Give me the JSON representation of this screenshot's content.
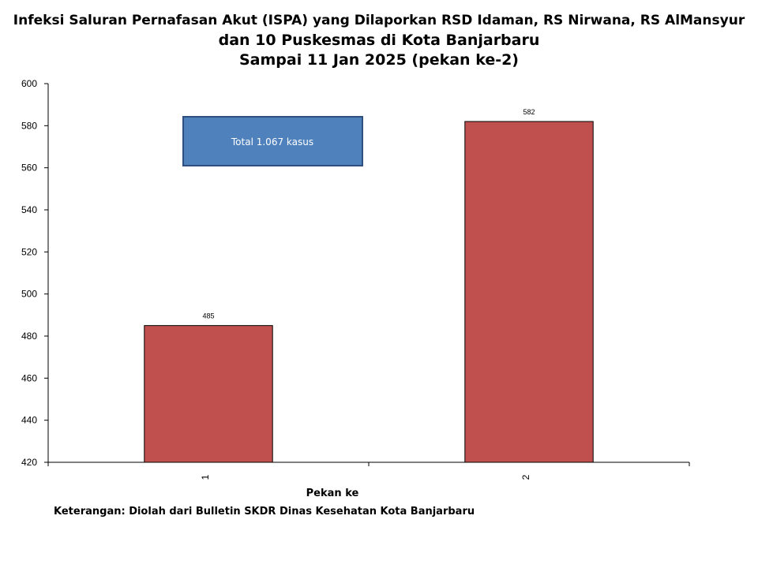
{
  "chart_data": {
    "type": "bar",
    "title": "Infeksi Saluran Pernafasan Akut (ISPA) yang Dilaporkan RSD Idaman, RS Nirwana, RS AlMansyur",
    "subtitle": [
      "dan 10 Puskesmas di Kota Banjarbaru",
      "Sampai 11 Jan 2025 (pekan ke-2)"
    ],
    "xlabel": "Pekan ke",
    "ylabel": "",
    "categories": [
      "1",
      "2"
    ],
    "values": [
      485,
      582
    ],
    "data_labels": [
      "485",
      "582"
    ],
    "ylim": [
      420,
      600
    ],
    "yticks": [
      420,
      440,
      460,
      480,
      500,
      520,
      540,
      560,
      580,
      600
    ],
    "grid": false,
    "bar_color": "#C0504D",
    "annotation": "Total 1.067 kasus",
    "annotation_color": "#4F81BD"
  },
  "footnote": "Keterangan: Diolah dari Bulletin SKDR Dinas Kesehatan Kota Banjarbaru"
}
